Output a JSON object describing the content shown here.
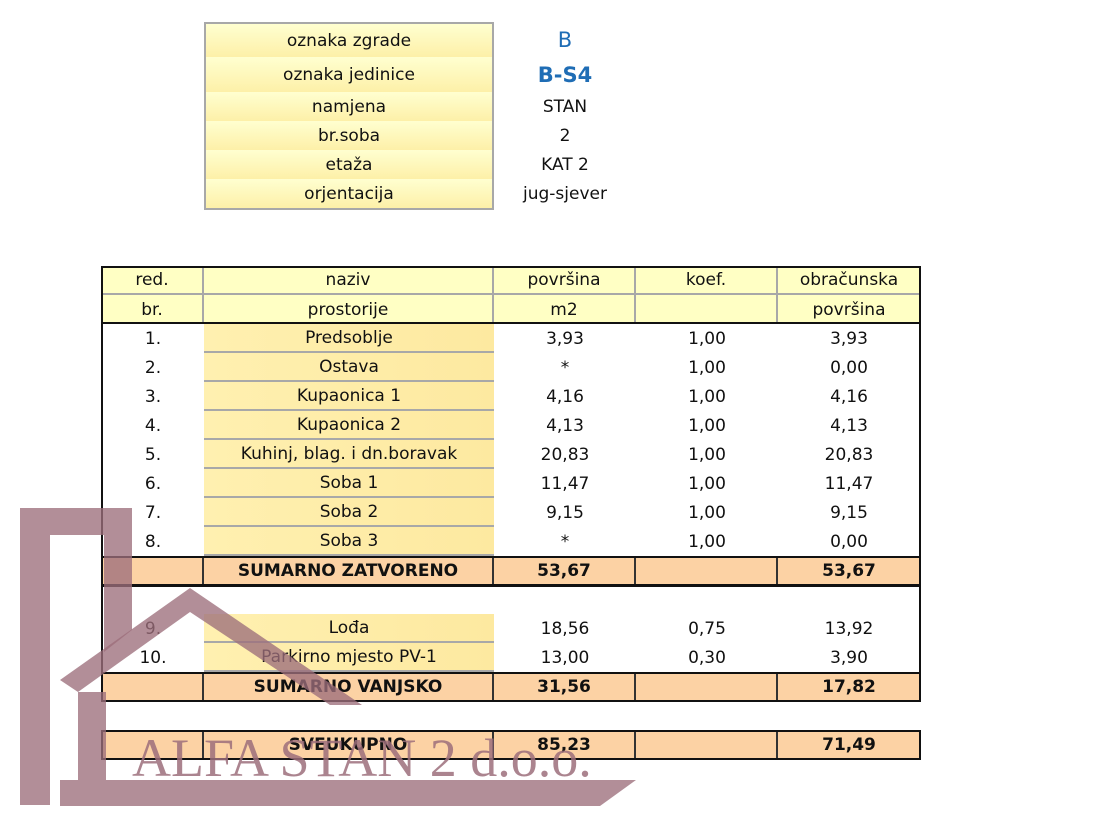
{
  "info": [
    {
      "label": "oznaka zgrade",
      "value": "B"
    },
    {
      "label": "oznaka jedinice",
      "value": "B-S4"
    },
    {
      "label": "namjena",
      "value": "STAN"
    },
    {
      "label": "br.soba",
      "value": "2"
    },
    {
      "label": "etaža",
      "value": "KAT 2"
    },
    {
      "label": "orjentacija",
      "value": "jug-sjever"
    }
  ],
  "table": {
    "header": [
      [
        "red.",
        "naziv",
        "površina",
        "koef.",
        "obračunska"
      ],
      [
        "br.",
        "prostorije",
        "m2",
        null,
        "površina"
      ]
    ],
    "rows": [
      [
        "1.",
        "Predsoblje",
        "3,93",
        "1,00",
        "3,93"
      ],
      [
        "2.",
        "Ostava",
        "*",
        "1,00",
        "0,00"
      ],
      [
        "3.",
        "Kupaonica 1",
        "4,16",
        "1,00",
        "4,16"
      ],
      [
        "4.",
        "Kupaonica 2",
        "4,13",
        "1,00",
        "4,13"
      ],
      [
        "5.",
        "Kuhinj, blag. i dn.boravak",
        "20,83",
        "1,00",
        "20,83"
      ],
      [
        "6.",
        "Soba 1",
        "11,47",
        "1,00",
        "11,47"
      ],
      [
        "7.",
        "Soba 2",
        "9,15",
        "1,00",
        "9,15"
      ],
      [
        "8.",
        "Soba 3",
        "*",
        "1,00",
        "0,00"
      ]
    ],
    "sum_closed": [
      null,
      "SUMARNO ZATVORENO",
      "53,67",
      null,
      "53,67"
    ],
    "outer_rows": [
      [
        "9.",
        "Lođa",
        "18,56",
        "0,75",
        "13,92"
      ],
      [
        "10.",
        "Parkirno mjesto PV-1",
        "13,00",
        "0,30",
        "3,90"
      ]
    ],
    "sum_outer": [
      null,
      "SUMARNO VANJSKO",
      "31,56",
      null,
      "17,82"
    ],
    "total": [
      null,
      "SVEUKUPNO",
      "85,23",
      null,
      "71,49"
    ]
  },
  "watermark": "ALFA STAN 2 d.o.o."
}
